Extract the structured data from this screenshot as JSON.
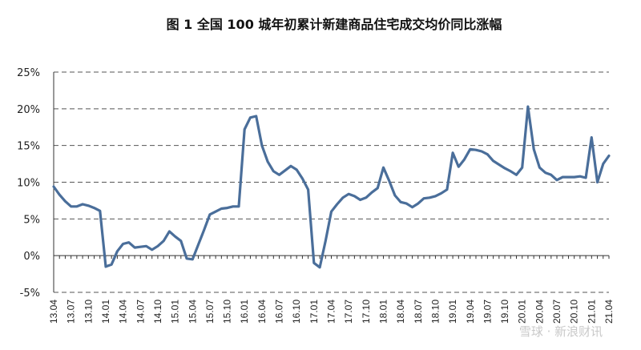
{
  "chart_data": {
    "type": "line",
    "title": "图 1    全国 100 城年初累计新建商品住宅成交均价同比涨幅",
    "xlabel": "",
    "ylabel": "",
    "ylim": [
      -5,
      25
    ],
    "yticks": [
      "25%",
      "20%",
      "15%",
      "10%",
      "5%",
      "0%",
      "-5%"
    ],
    "ytick_values": [
      25,
      20,
      15,
      10,
      5,
      0,
      -5
    ],
    "grid": true,
    "line_color": "#4a6e9a",
    "x": [
      "13.04",
      "13.05",
      "13.06",
      "13.07",
      "13.08",
      "13.09",
      "13.10",
      "13.11",
      "13.12",
      "14.01",
      "14.02",
      "14.03",
      "14.04",
      "14.05",
      "14.06",
      "14.07",
      "14.08",
      "14.09",
      "14.10",
      "14.11",
      "14.12",
      "15.01",
      "15.02",
      "15.03",
      "15.04",
      "15.05",
      "15.06",
      "15.07",
      "15.08",
      "15.09",
      "15.10",
      "15.11",
      "15.12",
      "16.01",
      "16.02",
      "16.03",
      "16.04",
      "16.05",
      "16.06",
      "16.07",
      "16.08",
      "16.09",
      "16.10",
      "16.11",
      "16.12",
      "17.01",
      "17.02",
      "17.03",
      "17.04",
      "17.05",
      "17.06",
      "17.07",
      "17.08",
      "17.09",
      "17.10",
      "17.11",
      "17.12",
      "18.01",
      "18.02",
      "18.03",
      "18.04",
      "18.05",
      "18.06",
      "18.07",
      "18.08",
      "18.09",
      "18.10",
      "18.11",
      "18.12",
      "19.01",
      "19.02",
      "19.03",
      "19.04",
      "19.05",
      "19.06",
      "19.07",
      "19.08",
      "19.09",
      "19.10",
      "19.11",
      "19.12",
      "20.01",
      "20.02",
      "20.03",
      "20.04",
      "20.05",
      "20.06",
      "20.07",
      "20.08",
      "20.09",
      "20.10",
      "20.11",
      "20.12",
      "21.01",
      "21.02",
      "21.03",
      "21.04"
    ],
    "xtick_labels": [
      "13.04",
      "13.07",
      "13.10",
      "14.01",
      "14.04",
      "14.07",
      "14.10",
      "15.01",
      "15.04",
      "15.07",
      "15.10",
      "16.01",
      "16.04",
      "16.07",
      "16.10",
      "17.01",
      "17.04",
      "17.07",
      "17.10",
      "18.01",
      "18.04",
      "18.07",
      "18.10",
      "19.01",
      "19.04",
      "19.07",
      "19.10",
      "20.01",
      "20.04",
      "20.07",
      "20.10",
      "21.01",
      "21.04"
    ],
    "series": [
      {
        "values": [
          9.4,
          8.3,
          7.4,
          6.7,
          6.7,
          7.0,
          6.8,
          6.5,
          6.1,
          -1.5,
          -1.2,
          0.6,
          1.6,
          1.8,
          1.1,
          1.2,
          1.3,
          0.8,
          1.3,
          2.0,
          3.3,
          2.6,
          2.0,
          -0.4,
          -0.5,
          1.5,
          3.5,
          5.6,
          6.0,
          6.4,
          6.5,
          6.7,
          6.7,
          17.2,
          18.8,
          19.0,
          15.0,
          12.8,
          11.5,
          11.0,
          11.6,
          12.2,
          11.7,
          10.5,
          9.0,
          -1.0,
          -1.6,
          2.0,
          6.0,
          7.0,
          7.9,
          8.4,
          8.1,
          7.6,
          7.9,
          8.6,
          9.2,
          12.0,
          10.2,
          8.2,
          7.3,
          7.1,
          6.6,
          7.1,
          7.8,
          7.9,
          8.1,
          8.5,
          9.0,
          14.0,
          12.1,
          13.1,
          14.5,
          14.4,
          14.2,
          13.8,
          12.9,
          12.4,
          11.9,
          11.5,
          11.0,
          12.0,
          20.3,
          14.5,
          12.0,
          11.3,
          11.0,
          10.3,
          10.7,
          10.7,
          10.7,
          10.8,
          10.6,
          16.1,
          10.0,
          12.5,
          13.6
        ]
      }
    ]
  },
  "watermark": "雪球 · 新浪财讯"
}
